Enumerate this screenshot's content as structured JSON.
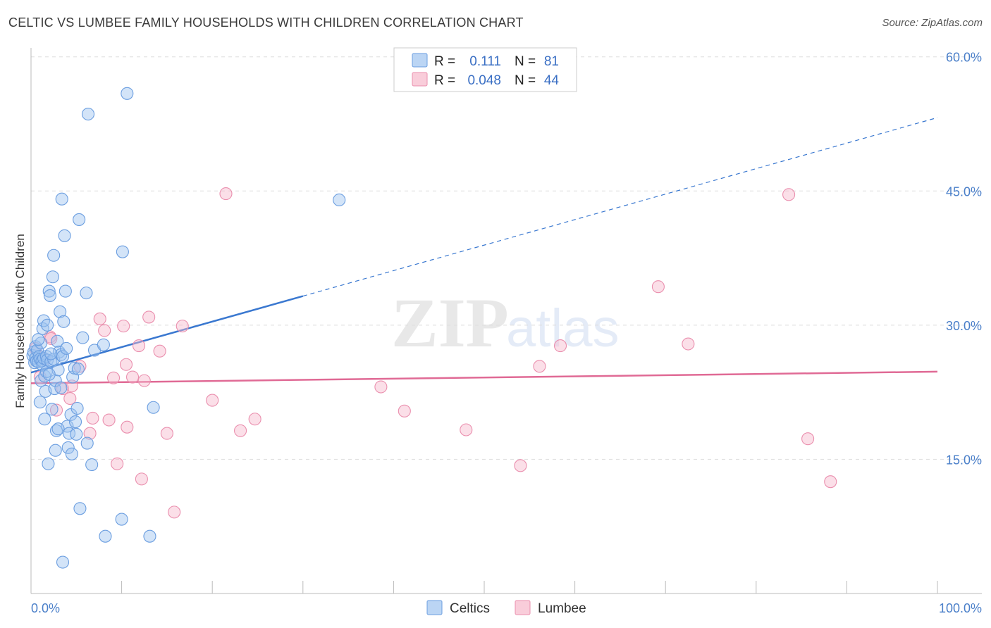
{
  "title": "CELTIC VS LUMBEE FAMILY HOUSEHOLDS WITH CHILDREN CORRELATION CHART",
  "source": "Source: ZipAtlas.com",
  "colors": {
    "celtics_fill": "#9ec3f0",
    "celtics_stroke": "#6b9ee0",
    "celtics_line": "#3a78d0",
    "lumbee_fill": "#f6b8cb",
    "lumbee_stroke": "#ea8fae",
    "lumbee_line": "#e06a95",
    "tick": "#4a7fc9",
    "grid": "#dddddd"
  },
  "legend": {
    "rows": [
      {
        "r_label": "R =",
        "r_value": "0.111",
        "n_label": "N =",
        "n_value": "81"
      },
      {
        "r_label": "R =",
        "r_value": "0.048",
        "n_label": "N =",
        "n_value": "44"
      }
    ]
  },
  "chart_data": {
    "type": "scatter",
    "title": "CELTIC VS LUMBEE FAMILY HOUSEHOLDS WITH CHILDREN CORRELATION CHART",
    "xlabel": "",
    "ylabel": "Family Households with Children",
    "xlim": [
      0,
      100
    ],
    "ylim": [
      0,
      61
    ],
    "x_tick_labels": [
      "0.0%",
      "100.0%"
    ],
    "y_ticks": [
      15,
      30,
      45,
      60
    ],
    "y_tick_labels": [
      "15.0%",
      "30.0%",
      "45.0%",
      "60.0%"
    ],
    "grid": "horizontal dashed",
    "legend_position": "top-center",
    "watermark": "ZIPatlas",
    "series": [
      {
        "name": "Celtics",
        "r": 0.111,
        "n": 81,
        "trend": {
          "x0": 0,
          "y0": 24.7,
          "x_solid_end": 30,
          "x1": 100,
          "y1": 53.2
        },
        "points": [
          [
            0.2,
            26.6
          ],
          [
            0.3,
            27.0
          ],
          [
            0.4,
            25.8
          ],
          [
            0.5,
            27.6
          ],
          [
            0.5,
            26.3
          ],
          [
            0.6,
            26.0
          ],
          [
            0.7,
            27.2
          ],
          [
            0.8,
            25.9
          ],
          [
            0.9,
            26.5
          ],
          [
            1.0,
            26.2
          ],
          [
            1.1,
            28.0
          ],
          [
            1.1,
            23.8
          ],
          [
            1.2,
            26.0
          ],
          [
            1.3,
            25.5
          ],
          [
            1.3,
            29.6
          ],
          [
            1.4,
            30.5
          ],
          [
            1.4,
            26.3
          ],
          [
            1.5,
            24.3
          ],
          [
            1.6,
            22.6
          ],
          [
            1.7,
            26.5
          ],
          [
            1.7,
            24.8
          ],
          [
            1.8,
            26.1
          ],
          [
            1.9,
            14.5
          ],
          [
            2.0,
            33.8
          ],
          [
            2.1,
            33.3
          ],
          [
            2.2,
            25.9
          ],
          [
            2.3,
            20.6
          ],
          [
            2.4,
            35.4
          ],
          [
            2.5,
            37.8
          ],
          [
            2.5,
            26.2
          ],
          [
            2.6,
            22.9
          ],
          [
            2.7,
            23.8
          ],
          [
            2.7,
            16.0
          ],
          [
            2.8,
            18.2
          ],
          [
            2.9,
            28.2
          ],
          [
            3.0,
            25.0
          ],
          [
            3.1,
            27.0
          ],
          [
            3.2,
            31.5
          ],
          [
            3.3,
            26.7
          ],
          [
            3.4,
            44.1
          ],
          [
            3.5,
            26.5
          ],
          [
            3.5,
            3.5
          ],
          [
            3.6,
            30.4
          ],
          [
            3.7,
            40.0
          ],
          [
            3.8,
            33.8
          ],
          [
            3.9,
            27.4
          ],
          [
            4.0,
            18.7
          ],
          [
            4.1,
            16.3
          ],
          [
            4.2,
            17.9
          ],
          [
            4.4,
            20.0
          ],
          [
            4.6,
            24.2
          ],
          [
            4.8,
            25.2
          ],
          [
            4.9,
            19.2
          ],
          [
            5.0,
            17.8
          ],
          [
            5.1,
            20.7
          ],
          [
            5.2,
            25.1
          ],
          [
            5.3,
            41.8
          ],
          [
            5.4,
            9.5
          ],
          [
            5.7,
            28.6
          ],
          [
            6.1,
            33.6
          ],
          [
            6.2,
            16.8
          ],
          [
            6.3,
            53.6
          ],
          [
            6.7,
            14.4
          ],
          [
            7.0,
            27.2
          ],
          [
            8.0,
            27.8
          ],
          [
            8.2,
            6.4
          ],
          [
            10.0,
            8.3
          ],
          [
            10.1,
            38.2
          ],
          [
            10.6,
            55.9
          ],
          [
            13.1,
            6.4
          ],
          [
            13.5,
            20.8
          ],
          [
            34.0,
            44.0
          ],
          [
            1.5,
            19.5
          ],
          [
            2.0,
            24.5
          ],
          [
            0.8,
            28.4
          ],
          [
            1.0,
            21.4
          ],
          [
            3.0,
            18.4
          ],
          [
            4.5,
            15.6
          ],
          [
            1.8,
            30.0
          ],
          [
            2.2,
            26.8
          ],
          [
            3.3,
            23.0
          ]
        ]
      },
      {
        "name": "Lumbee",
        "r": 0.048,
        "n": 44,
        "trend": {
          "x0": 0,
          "y0": 23.5,
          "x1": 100,
          "y1": 24.8
        },
        "points": [
          [
            0.5,
            27.4
          ],
          [
            1.0,
            24.2
          ],
          [
            1.5,
            26.2
          ],
          [
            2.1,
            28.7
          ],
          [
            2.2,
            28.5
          ],
          [
            2.8,
            20.5
          ],
          [
            3.5,
            22.9
          ],
          [
            4.3,
            21.8
          ],
          [
            4.5,
            23.2
          ],
          [
            5.4,
            25.4
          ],
          [
            6.5,
            17.9
          ],
          [
            6.8,
            19.6
          ],
          [
            7.6,
            30.7
          ],
          [
            8.1,
            29.4
          ],
          [
            8.6,
            19.4
          ],
          [
            9.1,
            24.1
          ],
          [
            9.5,
            14.5
          ],
          [
            10.2,
            29.9
          ],
          [
            10.5,
            25.6
          ],
          [
            10.6,
            18.6
          ],
          [
            11.2,
            24.2
          ],
          [
            11.9,
            27.7
          ],
          [
            12.2,
            12.8
          ],
          [
            12.5,
            23.8
          ],
          [
            13.0,
            30.9
          ],
          [
            14.2,
            27.1
          ],
          [
            15.0,
            17.9
          ],
          [
            15.8,
            9.1
          ],
          [
            16.7,
            29.9
          ],
          [
            20.0,
            21.6
          ],
          [
            21.5,
            44.7
          ],
          [
            23.1,
            18.2
          ],
          [
            24.7,
            19.5
          ],
          [
            38.6,
            23.1
          ],
          [
            41.2,
            20.4
          ],
          [
            48.0,
            18.3
          ],
          [
            54.0,
            14.3
          ],
          [
            56.1,
            25.4
          ],
          [
            58.4,
            27.7
          ],
          [
            69.2,
            34.3
          ],
          [
            72.5,
            27.9
          ],
          [
            83.6,
            44.6
          ],
          [
            85.7,
            17.3
          ],
          [
            88.2,
            12.5
          ]
        ]
      }
    ]
  },
  "bottom_legend": [
    {
      "label": "Celtics"
    },
    {
      "label": "Lumbee"
    }
  ]
}
